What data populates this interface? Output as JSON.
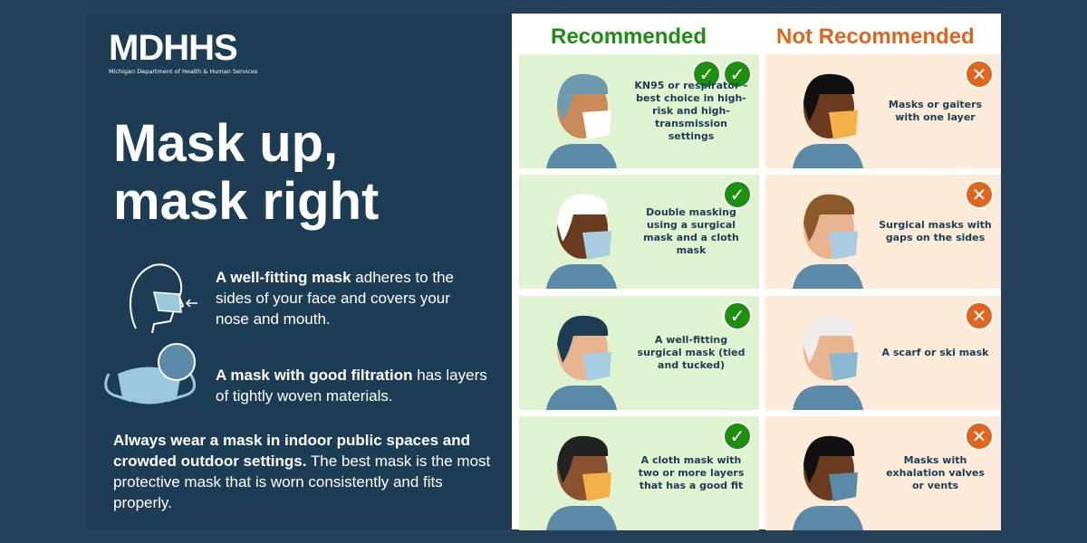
{
  "logo": {
    "name": "MDHHS",
    "subtitle": "Michigan Department of Health & Human Services"
  },
  "title": [
    "Mask up,",
    "mask right"
  ],
  "info": [
    {
      "bold": "A well-fitting mask",
      "rest": " adheres to the sides of your face and covers your nose and mouth.",
      "icon": "face-mask-fit-icon"
    },
    {
      "bold": "A mask with good filtration",
      "rest": " has layers of tightly woven materials.",
      "icon": "mask-filtration-icon"
    }
  ],
  "always": {
    "bold": "Always wear a mask in indoor public spaces and crowded outdoor settings.",
    "rest": " The best mask is the most protective mask that is worn consistently and fits properly."
  },
  "headers": {
    "recommended": "Recommended",
    "not_recommended": "Not Recommended"
  },
  "colors": {
    "recommended": "#1f8f12",
    "not_recommended": "#e0661f",
    "rec_bg": "#dff3d0",
    "not_bg": "#fdebd9"
  },
  "recommended": [
    {
      "text": "KN95 or respirator – best choice in high-risk and high-transmission settings",
      "checks": 2
    },
    {
      "text": "Double masking using a surgical mask and a cloth mask",
      "checks": 1
    },
    {
      "text": "A well-fitting surgical mask (tied and tucked)",
      "checks": 1
    },
    {
      "text": "A cloth mask with two or more layers that has a good fit",
      "checks": 1
    }
  ],
  "not_recommended": [
    {
      "text": "Masks or gaiters with one layer"
    },
    {
      "text": "Surgical masks with gaps on the sides"
    },
    {
      "text": "A scarf or ski mask"
    },
    {
      "text": "Masks with exhalation valves or vents"
    }
  ]
}
